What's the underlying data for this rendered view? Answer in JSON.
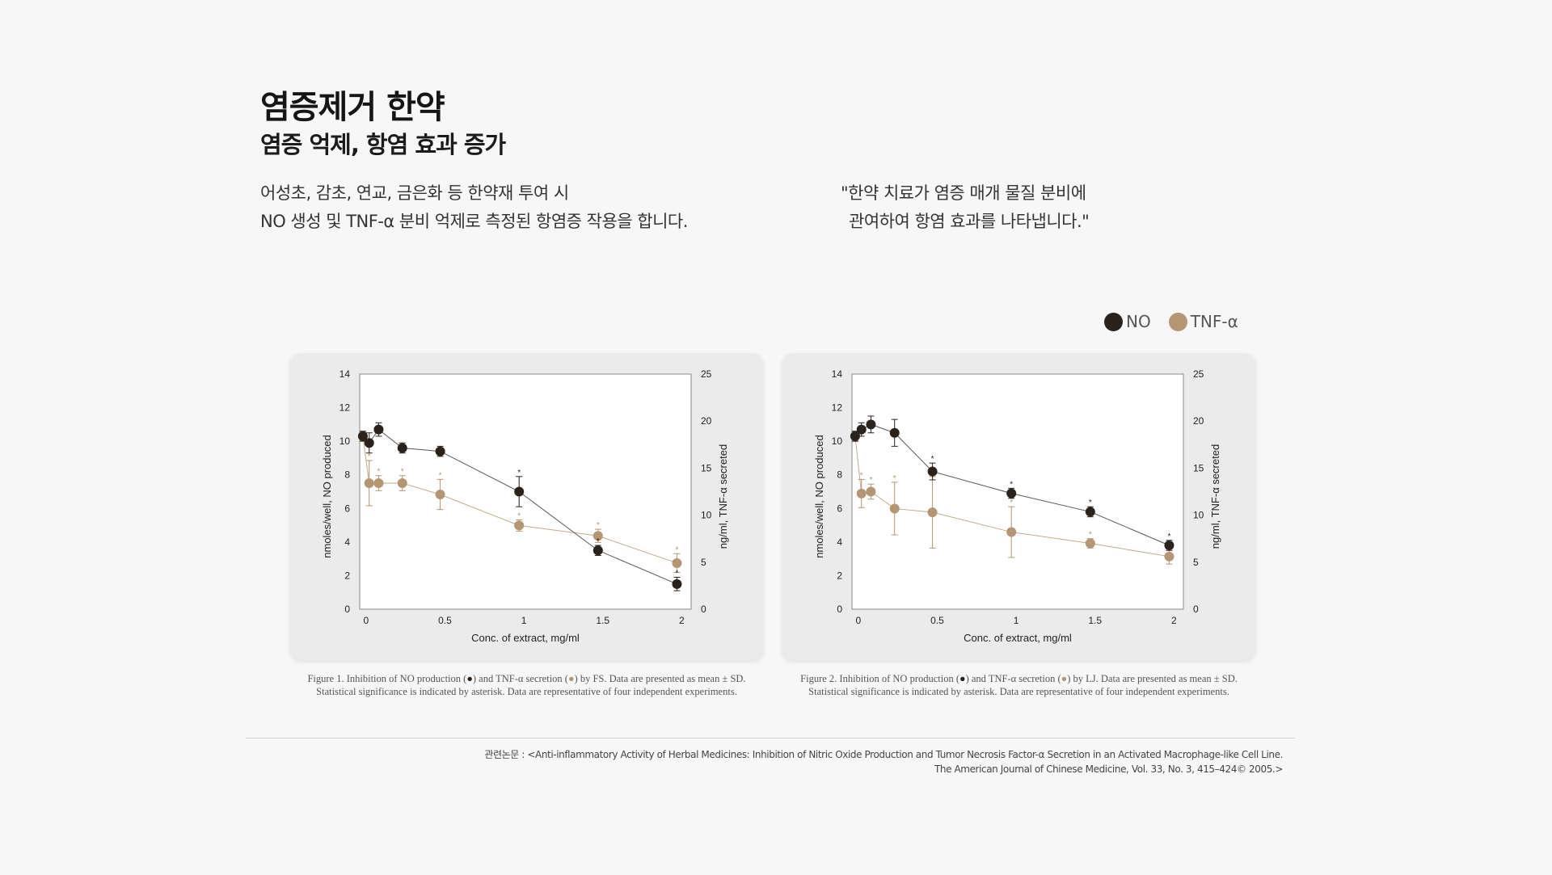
{
  "header": {
    "title": "염증제거 한약",
    "subtitle": "염증 억제, 항염 효과 증가",
    "desc_line1": "어성초, 감초, 연교, 금은화 등 한약재 투여 시",
    "desc_line2": "NO 생성 및 TNF-α 분비 억제로 측정된 항염증 작용을 합니다.",
    "quote_line1": "\"한약 치료가 염증 매개 물질 분비에",
    "quote_line2": "관여하여 항염 효과를 나타냅니다.\""
  },
  "legend": {
    "no_label": "NO",
    "tnf_label": "TNF-α",
    "no_color": "#2b221c",
    "tnf_color": "#b49674"
  },
  "chart_data": [
    {
      "type": "line",
      "xlabel": "Conc. of extract, mg/ml",
      "ylabel": "nmoles/well, NO produced",
      "y2label": "ng/ml, TNF-α secreted",
      "xlim": [
        -0.04,
        2.06
      ],
      "ylim": [
        0,
        14
      ],
      "y2lim": [
        0,
        25
      ],
      "xticks": [
        "0",
        "0.5",
        "1",
        "1.5",
        "2"
      ],
      "yticks": [
        "0",
        "2",
        "4",
        "6",
        "8",
        "10",
        "12",
        "14"
      ],
      "y2ticks": [
        "0",
        "5",
        "10",
        "15",
        "20",
        "25"
      ],
      "grid": false,
      "series": [
        {
          "name": "NO",
          "axis": "left",
          "color": "#2b221c",
          "x": [
            -0.02,
            0.02,
            0.08,
            0.23,
            0.47,
            0.97,
            1.47,
            1.97
          ],
          "y": [
            10.3,
            9.9,
            10.7,
            9.6,
            9.4,
            7.0,
            3.5,
            1.5
          ],
          "err": [
            0.3,
            0.6,
            0.4,
            0.3,
            0.3,
            0.9,
            0.3,
            0.4
          ],
          "sig": [
            false,
            false,
            false,
            false,
            false,
            true,
            true,
            true
          ]
        },
        {
          "name": "TNF-α",
          "axis": "right",
          "color": "#b49674",
          "x": [
            -0.02,
            0.02,
            0.08,
            0.23,
            0.47,
            0.97,
            1.47,
            1.97
          ],
          "y": [
            18.4,
            13.4,
            13.4,
            13.4,
            12.2,
            8.9,
            7.8,
            4.9
          ],
          "err": [
            0.5,
            2.4,
            0.8,
            0.8,
            1.6,
            0.6,
            0.7,
            1.0
          ],
          "sig": [
            false,
            true,
            true,
            true,
            true,
            true,
            true,
            true
          ]
        }
      ]
    },
    {
      "type": "line",
      "xlabel": "Conc. of extract, mg/ml",
      "ylabel": "nmoles/well, NO produced",
      "y2label": "ng/ml, TNF-α secreted",
      "xlim": [
        -0.04,
        2.06
      ],
      "ylim": [
        0,
        14
      ],
      "y2lim": [
        0,
        25
      ],
      "xticks": [
        "0",
        "0.5",
        "1",
        "1.5",
        "2"
      ],
      "yticks": [
        "0",
        "2",
        "4",
        "6",
        "8",
        "10",
        "12",
        "14"
      ],
      "y2ticks": [
        "0",
        "5",
        "10",
        "15",
        "20",
        "25"
      ],
      "grid": false,
      "series": [
        {
          "name": "NO",
          "axis": "left",
          "color": "#2b221c",
          "x": [
            -0.02,
            0.02,
            0.08,
            0.23,
            0.47,
            0.97,
            1.47,
            1.97
          ],
          "y": [
            10.3,
            10.7,
            11.0,
            10.5,
            8.2,
            6.9,
            5.8,
            3.8
          ],
          "err": [
            0.3,
            0.4,
            0.5,
            0.8,
            0.5,
            0.3,
            0.3,
            0.3
          ],
          "sig": [
            false,
            false,
            false,
            false,
            true,
            true,
            true,
            true
          ]
        },
        {
          "name": "TNF-α",
          "axis": "right",
          "color": "#b49674",
          "x": [
            -0.02,
            0.02,
            0.08,
            0.23,
            0.47,
            0.97,
            1.47,
            1.97
          ],
          "y": [
            18.4,
            12.3,
            12.5,
            10.7,
            10.3,
            8.2,
            7.0,
            5.6
          ],
          "err": [
            0.5,
            1.5,
            0.8,
            2.8,
            3.8,
            2.7,
            0.5,
            0.8
          ],
          "sig": [
            false,
            true,
            true,
            true,
            true,
            true,
            true,
            true
          ]
        }
      ]
    }
  ],
  "captions": [
    {
      "pre": "Figure 1. Inhibition of NO production (",
      "mk1": "●",
      "mid": ") and TNF-α secretion (",
      "mk2": "●",
      "post": ") by FS. Data are presented as mean ± SD.",
      "line2": "Statistical significance is indicated by asterisk. Data are representative of four independent experiments."
    },
    {
      "pre": "Figure 2. Inhibition of NO production (",
      "mk1": "●",
      "mid": ") and TNF-α secretion (",
      "mk2": "●",
      "post": ") by LJ. Data are presented as mean ± SD.",
      "line2": "Statistical significance is indicated by asterisk. Data are representative of four independent experiments."
    }
  ],
  "reference": {
    "line1": "관련논문 : <Anti-inflammatory Activity of Herbal Medicines: Inhibition of Nitric Oxide Production and Tumor Necrosis Factor-α Secretion in an Activated Macrophage-like Cell Line.",
    "line2": "The American Journal of Chinese Medicine, Vol. 33, No. 3, 415–424© 2005.>"
  }
}
